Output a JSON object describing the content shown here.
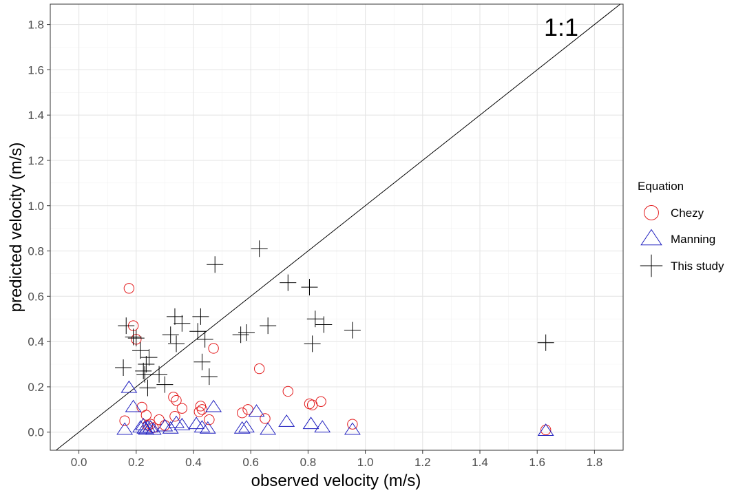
{
  "chart_data": {
    "type": "scatter",
    "xlabel": "observed velocity (m/s)",
    "ylabel": "predicted velocity (m/s)",
    "xlim": [
      -0.1,
      1.9
    ],
    "ylim": [
      -0.08,
      1.89
    ],
    "xticks": [
      "0.0",
      "0.2",
      "0.4",
      "0.6",
      "0.8",
      "1.0",
      "1.2",
      "1.4",
      "1.6",
      "1.8"
    ],
    "yticks": [
      "0.0",
      "0.2",
      "0.4",
      "0.6",
      "0.8",
      "1.0",
      "1.2",
      "1.4",
      "1.6",
      "1.8"
    ],
    "grid": true,
    "reference_line": "y = x",
    "annotation": "1:1",
    "legend": {
      "title": "Equation",
      "placement": "right"
    },
    "series": [
      {
        "name": "Chezy",
        "marker": "circle",
        "color": "#e31a1c",
        "x": [
          0.16,
          0.175,
          0.19,
          0.2,
          0.22,
          0.235,
          0.24,
          0.25,
          0.26,
          0.28,
          0.3,
          0.33,
          0.335,
          0.34,
          0.36,
          0.42,
          0.425,
          0.43,
          0.455,
          0.47,
          0.57,
          0.59,
          0.63,
          0.65,
          0.73,
          0.805,
          0.815,
          0.845,
          0.955,
          1.63
        ],
        "y": [
          0.05,
          0.635,
          0.47,
          0.41,
          0.11,
          0.075,
          0.03,
          0.035,
          0.02,
          0.055,
          0.03,
          0.155,
          0.07,
          0.14,
          0.105,
          0.09,
          0.115,
          0.1,
          0.055,
          0.37,
          0.085,
          0.1,
          0.28,
          0.06,
          0.18,
          0.125,
          0.12,
          0.135,
          0.035,
          0.01
        ]
      },
      {
        "name": "Manning",
        "marker": "triangle",
        "color": "#1f1fbf",
        "x": [
          0.16,
          0.175,
          0.19,
          0.215,
          0.225,
          0.23,
          0.235,
          0.24,
          0.25,
          0.26,
          0.3,
          0.32,
          0.34,
          0.36,
          0.41,
          0.43,
          0.45,
          0.47,
          0.57,
          0.585,
          0.62,
          0.66,
          0.725,
          0.81,
          0.85,
          0.955,
          1.63
        ],
        "y": [
          0.01,
          0.195,
          0.11,
          0.02,
          0.03,
          0.015,
          0.01,
          0.02,
          0.02,
          0.01,
          0.025,
          0.015,
          0.04,
          0.03,
          0.035,
          0.02,
          0.015,
          0.11,
          0.015,
          0.02,
          0.09,
          0.01,
          0.045,
          0.035,
          0.02,
          0.01,
          0.005
        ]
      },
      {
        "name": "This study",
        "marker": "cross",
        "color": "#000000",
        "x": [
          0.155,
          0.165,
          0.19,
          0.2,
          0.215,
          0.225,
          0.23,
          0.235,
          0.24,
          0.245,
          0.28,
          0.3,
          0.32,
          0.335,
          0.34,
          0.36,
          0.415,
          0.425,
          0.43,
          0.44,
          0.455,
          0.475,
          0.565,
          0.585,
          0.63,
          0.66,
          0.73,
          0.805,
          0.815,
          0.825,
          0.855,
          0.955,
          1.63
        ],
        "y": [
          0.285,
          0.47,
          0.42,
          0.415,
          0.36,
          0.27,
          0.255,
          0.3,
          0.195,
          0.33,
          0.255,
          0.21,
          0.43,
          0.51,
          0.39,
          0.48,
          0.445,
          0.51,
          0.31,
          0.41,
          0.245,
          0.74,
          0.43,
          0.44,
          0.81,
          0.47,
          0.66,
          0.64,
          0.39,
          0.5,
          0.475,
          0.45,
          0.395
        ]
      }
    ]
  }
}
